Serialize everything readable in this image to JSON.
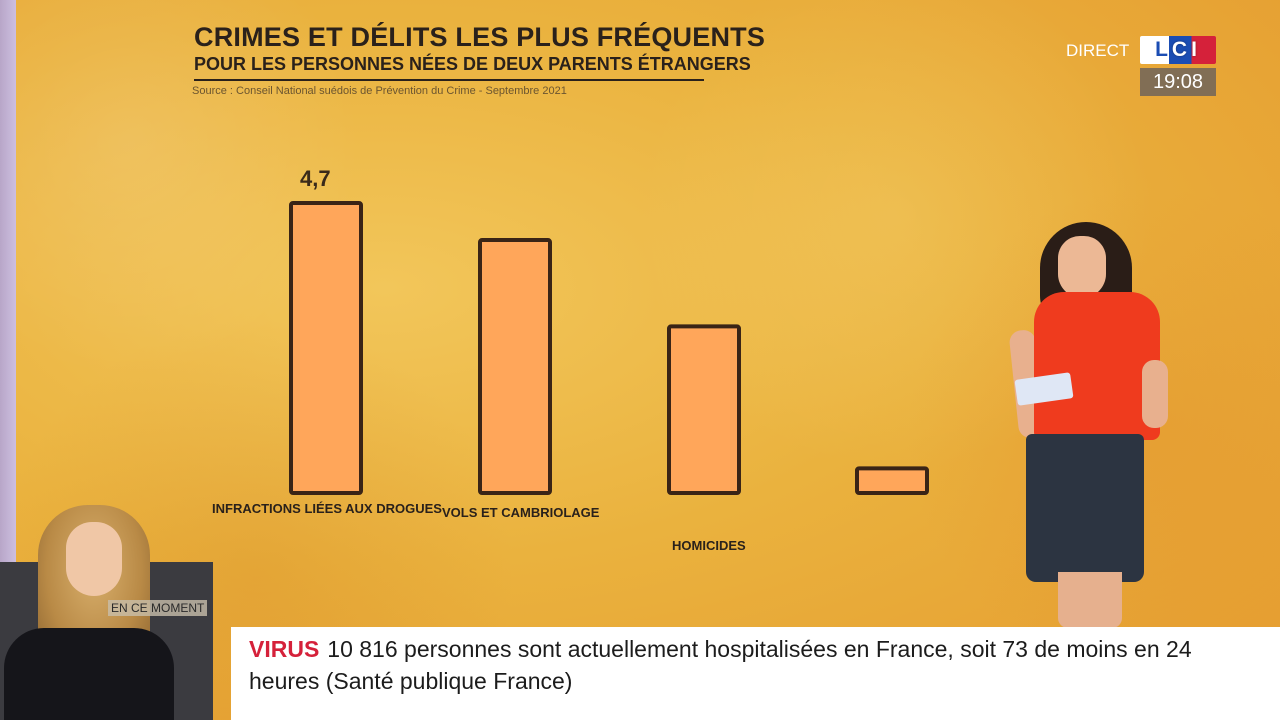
{
  "graphic": {
    "title": "CRIMES ET DÉLITS LES PLUS FRÉQUENTS",
    "subtitle": "POUR LES PERSONNES NÉES DE DEUX PARENTS ÉTRANGERS",
    "source": "Source : Conseil National suédois de Prévention du Crime - Septembre 2021"
  },
  "chart_data": {
    "type": "bar",
    "title": "CRIMES ET DÉLITS LES PLUS FRÉQUENTS",
    "subtitle": "POUR LES PERSONNES NÉES DE DEUX PARENTS ÉTRANGERS",
    "categories": [
      "INFRACTIONS LIÉES AUX DROGUES",
      "VOLS ET CAMBRIOLAGE",
      "HOMICIDES",
      ""
    ],
    "values": [
      4.7,
      4.1,
      2.7,
      0.4
    ],
    "data_labels": [
      "4,7",
      "",
      "",
      ""
    ],
    "xlabel": "",
    "ylabel": "",
    "ylim": [
      0,
      4.7
    ],
    "bar_color": "#ffa65a",
    "bar_outline": "#3a2416",
    "grid": false
  },
  "broadcast": {
    "live_label": "DIRECT",
    "channel_logo": "LCI",
    "time": "19:08",
    "inset_label": "EN CE MOMENT",
    "ticker_tag": "VIRUS",
    "ticker_text": "10 816 personnes sont actuellement hospitalisées en France, soit 73 de moins en 24 heures (Santé publique France)"
  },
  "colors": {
    "background": "#eab23e",
    "accent_red": "#d5213a",
    "accent_blue": "#1b4db3"
  }
}
